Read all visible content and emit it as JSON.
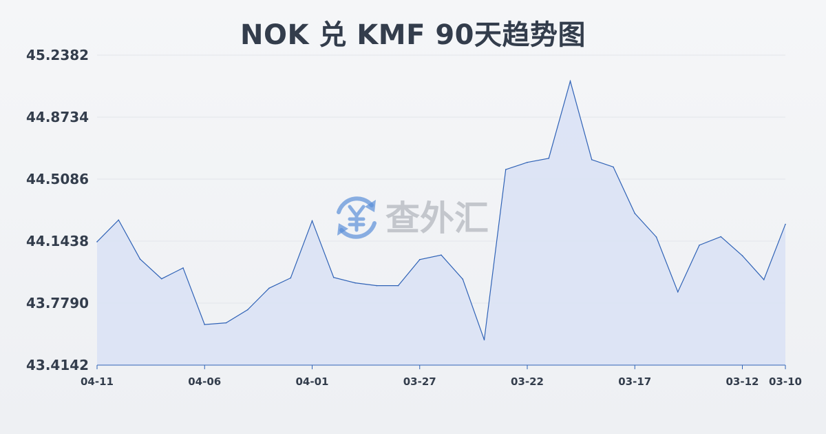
{
  "title": "NOK 兑 KMF 90天趋势图",
  "watermark": {
    "text": "查外汇",
    "icon": "yen-exchange-icon"
  },
  "colors": {
    "line": "#2f62b6",
    "fill": "#dae2f5",
    "grid": "#e2e5ea",
    "text": "#333d4c",
    "axis": "#2f62b6",
    "watermark_icon": "#5b8fd9"
  },
  "chart_data": {
    "type": "area",
    "title": "NOK 兑 KMF 90天趋势图",
    "xlabel": "",
    "ylabel": "",
    "y_ticks": [
      "45.2382",
      "44.8734",
      "44.5086",
      "44.1438",
      "43.7790",
      "43.4142"
    ],
    "ylim": [
      43.4142,
      45.2382
    ],
    "x_ticks": [
      {
        "label": "04-11",
        "index": 0
      },
      {
        "label": "04-06",
        "index": 5
      },
      {
        "label": "04-01",
        "index": 10
      },
      {
        "label": "03-27",
        "index": 15
      },
      {
        "label": "03-22",
        "index": 20
      },
      {
        "label": "03-17",
        "index": 25
      },
      {
        "label": "03-12",
        "index": 30
      },
      {
        "label": "03-10",
        "index": 32
      }
    ],
    "grid": true,
    "legend": "none",
    "x": [
      "04-11",
      "04-10",
      "04-09",
      "04-08",
      "04-07",
      "04-06",
      "04-05",
      "04-04",
      "04-03",
      "04-02",
      "04-01",
      "03-31",
      "03-30",
      "03-29",
      "03-28",
      "03-27",
      "03-26",
      "03-25",
      "03-24",
      "03-23",
      "03-22",
      "03-21",
      "03-20",
      "03-19",
      "03-18",
      "03-17",
      "03-16",
      "03-15",
      "03-14",
      "03-13",
      "03-12",
      "03-11",
      "03-10"
    ],
    "values": [
      44.14,
      44.268,
      44.038,
      43.922,
      43.986,
      43.653,
      43.663,
      43.74,
      43.867,
      43.927,
      44.263,
      43.93,
      43.898,
      43.882,
      43.882,
      44.035,
      44.062,
      43.92,
      43.563,
      44.565,
      44.607,
      44.631,
      45.085,
      44.623,
      44.58,
      44.307,
      44.168,
      43.845,
      44.12,
      44.17,
      44.058,
      43.917,
      44.243
    ]
  }
}
